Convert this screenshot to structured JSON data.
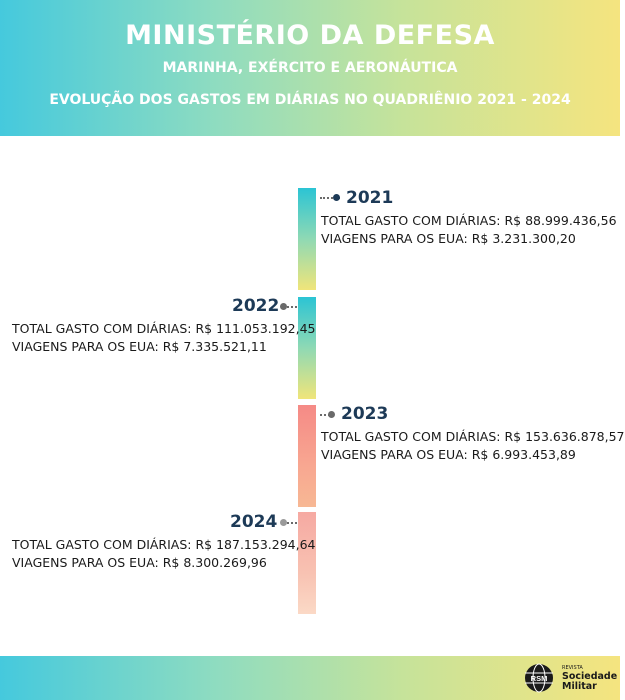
{
  "header": {
    "title": "MINISTÉRIO DA DEFESA",
    "subtitle": "MARINHA, EXÉRCITO E AERONÁUTICA",
    "subtitle2": "EVOLUÇÃO DOS GASTOS EM DIÁRIAS NO QUADRIÊNIO 2021 - 2024"
  },
  "timeline": [
    {
      "year": "2021",
      "total": "TOTAL GASTO COM DIÁRIAS: R$ 88.999.436,56",
      "eua": "VIAGENS PARA OS EUA: R$ 3.231.300,20"
    },
    {
      "year": "2022",
      "total": "TOTAL GASTO COM DIÁRIAS: R$ 111.053.192,45",
      "eua": "VIAGENS PARA OS EUA: R$ 7.335.521,11"
    },
    {
      "year": "2023",
      "total": "TOTAL GASTO COM DIÁRIAS: R$ 153.636.878,57",
      "eua": "VIAGENS PARA OS EUA: R$ 6.993.453,89"
    },
    {
      "year": "2024",
      "total": "TOTAL GASTO COM DIÁRIAS: R$ 187.153.294,64",
      "eua": "VIAGENS PARA OS EUA: R$ 8.300.269,96"
    }
  ],
  "footer": {
    "logo_small": "REVISTA",
    "logo_line1": "Sociedade",
    "logo_line2": "Militar",
    "logo_icon": "globe-icon",
    "logo_icon_text": "RSM"
  },
  "colors": {
    "header_gradient": [
      "#45c9dd",
      "#8fdcc0",
      "#c6e39a",
      "#f5e47f"
    ],
    "year_text": "#1d3a57",
    "teal_segment": "#2bc4d4",
    "salmon_segment": "#f58a86"
  }
}
